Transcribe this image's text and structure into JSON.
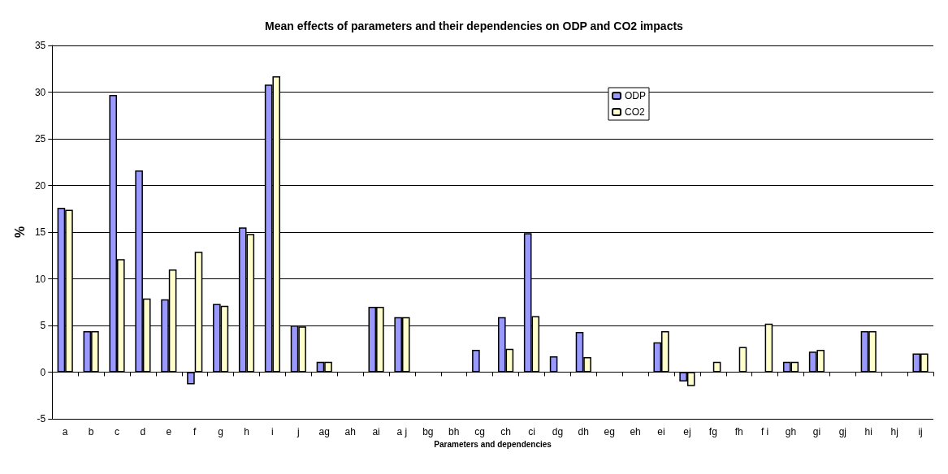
{
  "chart_data": {
    "type": "bar",
    "title": "Mean effects of parameters and their dependencies on ODP and CO2 impacts",
    "xlabel": "Parameters and dependencies",
    "ylabel": "%",
    "categories": [
      "a",
      "b",
      "c",
      "d",
      "e",
      "f",
      "g",
      "h",
      "i",
      "j",
      "ag",
      "ah",
      "ai",
      "a j",
      "bg",
      "bh",
      "cg",
      "ch",
      "ci",
      "dg",
      "dh",
      "eg",
      "eh",
      "ei",
      "ej",
      "fg",
      "fh",
      "f i",
      "gh",
      "gi",
      "gj",
      "hi",
      "hj",
      "ij"
    ],
    "series": [
      {
        "name": "ODP",
        "color": "#9999ff",
        "values": [
          17.6,
          4.4,
          29.7,
          21.6,
          7.8,
          -1.3,
          7.3,
          15.5,
          30.8,
          5.0,
          1.1,
          null,
          7.0,
          5.9,
          null,
          null,
          2.4,
          5.9,
          14.9,
          1.7,
          4.3,
          null,
          null,
          3.2,
          -1.0,
          null,
          null,
          null,
          1.1,
          2.2,
          null,
          4.4,
          null,
          2.0
        ]
      },
      {
        "name": "CO2",
        "color": "#ffffcc",
        "values": [
          17.4,
          4.4,
          12.1,
          7.9,
          11.0,
          12.9,
          7.1,
          14.8,
          31.7,
          4.9,
          1.1,
          null,
          7.0,
          5.9,
          null,
          null,
          null,
          2.5,
          6.0,
          null,
          1.6,
          null,
          null,
          4.4,
          -1.5,
          1.1,
          2.7,
          5.2,
          1.1,
          2.4,
          null,
          4.4,
          null,
          2.0
        ]
      }
    ],
    "ylim": [
      -5,
      35
    ],
    "yticks": [
      -5,
      0,
      5,
      10,
      15,
      20,
      25,
      30,
      35
    ],
    "grid": "y",
    "legend": "top right"
  }
}
